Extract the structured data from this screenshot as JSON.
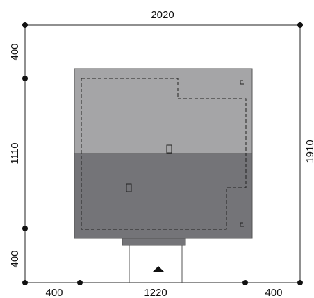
{
  "dimensions": {
    "total_width": "2020",
    "total_depth": "1910",
    "left_setback_top": "400",
    "left_house_depth": "1110",
    "left_setback_bottom": "400",
    "bottom_left_setback": "400",
    "bottom_house_width": "1220",
    "bottom_right_setback": "400"
  },
  "colors": {
    "roof_upper": "#a5a5a7",
    "roof_lower": "#747478",
    "outline": "#333333",
    "lines": "#222222",
    "background": "#ffffff"
  },
  "icons": {
    "entrance": "entrance-arrow-icon",
    "chimney_upper": "chimney-icon",
    "chimney_lower": "chimney-icon",
    "vent_top_right": "vent-icon",
    "vent_bottom_right": "vent-icon"
  }
}
